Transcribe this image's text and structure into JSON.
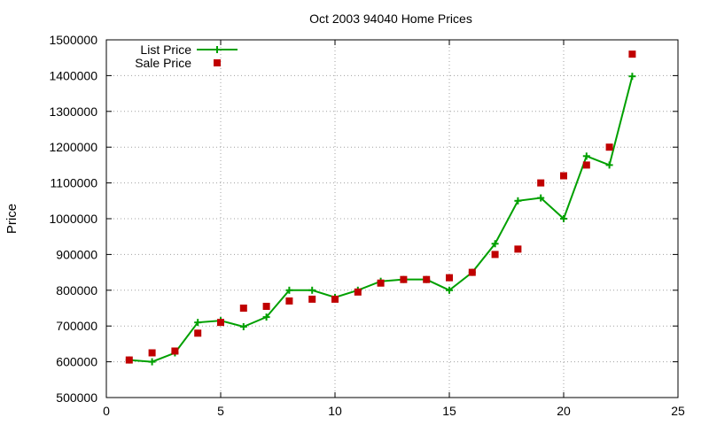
{
  "chart_data": {
    "type": "line",
    "title": "Oct 2003 94040 Home Prices",
    "xlabel": "",
    "ylabel": "Price",
    "xlim": [
      0,
      25
    ],
    "ylim": [
      500000,
      1500000
    ],
    "x_ticks": [
      0,
      5,
      10,
      15,
      20,
      25
    ],
    "y_ticks": [
      500000,
      600000,
      700000,
      800000,
      900000,
      1000000,
      1100000,
      1200000,
      1300000,
      1400000,
      1500000
    ],
    "grid": true,
    "legend_position": "top-left",
    "series": [
      {
        "name": "List Price",
        "style": "line-with-plus-markers",
        "color": "#00a000",
        "x": [
          1,
          2,
          3,
          4,
          5,
          6,
          7,
          8,
          9,
          10,
          11,
          12,
          13,
          14,
          15,
          16,
          17,
          18,
          19,
          20,
          21,
          22,
          23
        ],
        "y": [
          605000,
          600000,
          625000,
          710000,
          715000,
          698000,
          725000,
          800000,
          800000,
          780000,
          800000,
          825000,
          830000,
          830000,
          800000,
          850000,
          930000,
          1050000,
          1058000,
          1000000,
          1175000,
          1150000,
          1398000
        ]
      },
      {
        "name": "Sale Price",
        "style": "square-points",
        "color": "#c00000",
        "x": [
          1,
          2,
          3,
          4,
          5,
          6,
          7,
          8,
          9,
          10,
          11,
          12,
          13,
          14,
          15,
          16,
          17,
          18,
          19,
          20,
          21,
          22,
          23
        ],
        "y": [
          605000,
          625000,
          630000,
          680000,
          710000,
          750000,
          755000,
          770000,
          775000,
          775000,
          795000,
          820000,
          830000,
          830000,
          835000,
          850000,
          900000,
          915000,
          1100000,
          1120000,
          1150000,
          1200000,
          1460000
        ]
      }
    ]
  }
}
